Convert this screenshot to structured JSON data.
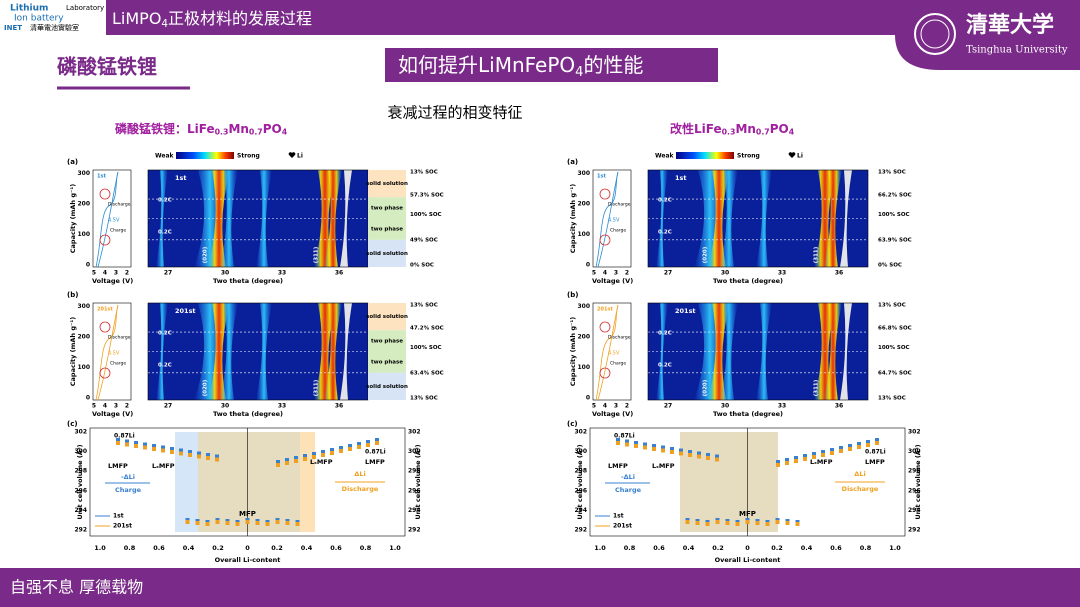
{
  "header": {
    "logo": {
      "line1": "Lithium",
      "line2": "Ion battery",
      "lab": "Laboratory",
      "mark": "INET",
      "cn": "清華電池實驗室"
    },
    "title": [
      "LiMPO",
      "4",
      "正极材料的发展过程"
    ],
    "university_cn": "清華大学",
    "university_en": "Tsinghua University"
  },
  "section_title": "磷酸锰铁锂",
  "headline": [
    "如何提升LiMnFePO",
    "4",
    "的性能"
  ],
  "subtitle": "衰减过程的相变特征",
  "figures": [
    {
      "title": [
        "磷酸锰铁锂：LiFe",
        "0.3",
        "Mn",
        "0.7",
        "PO",
        "4"
      ],
      "colorbar": {
        "weak": "Weak",
        "strong": "Strong",
        "li": "Li"
      },
      "axes": {
        "capacity": "Capacity (mAh g⁻¹)",
        "cap_ticks": [
          "0",
          "100",
          "200",
          "300"
        ],
        "voltage": "Voltage (V)",
        "volt_ticks": [
          "5",
          "4",
          "3",
          "2"
        ],
        "theta": "Two theta (degree)",
        "theta_ticks": [
          "27",
          "30",
          "33",
          "36"
        ],
        "peaks": [
          "(020)",
          "(311)"
        ],
        "rate": "0.2C",
        "discharge": "Discharge",
        "charge": "Charge",
        "cutoff": "4.5V"
      },
      "panels": [
        {
          "label": "(a)",
          "cycle": "1st",
          "soc": [
            "13% SOC",
            "57.3% SOC",
            "100% SOC",
            "49% SOC",
            "0% SOC"
          ],
          "phases": [
            "solid solution",
            "two phase",
            "two phase",
            "solid solution"
          ]
        },
        {
          "label": "(b)",
          "cycle": "201st",
          "soc": [
            "13% SOC",
            "47.2% SOC",
            "100% SOC",
            "63.4% SOC",
            "13% SOC"
          ],
          "phases": [
            "solid solution",
            "two phase",
            "two phase",
            "solid solution"
          ]
        }
      ],
      "volume": {
        "label": "(c)",
        "ylabel": "Unit cell volume (Å³)",
        "yticks": [
          "302",
          "300",
          "298",
          "296",
          "294",
          "292"
        ],
        "xticks": [
          "1.0",
          "0.8",
          "0.6",
          "0.4",
          "0.2",
          "0",
          "0.2",
          "0.4",
          "0.6",
          "0.8",
          "1.0"
        ],
        "xlabel": "Overall Li-content",
        "li_left": "0.87Li",
        "li_right": "0.87Li",
        "lmfp_left": "LMFP",
        "lxmfp_left": "LₓMFP",
        "lxmfp_right": "LₓMFP",
        "lmfp_right": "LMFP",
        "mfp": "MFP",
        "charge_delta": "-ΔLi",
        "charge": "Charge",
        "discharge_delta": "ΔLi",
        "discharge": "Discharge",
        "legend": [
          "1st",
          "201st"
        ]
      }
    },
    {
      "title": [
        "改性LiFe",
        "0.3",
        "Mn",
        "0.7",
        "PO",
        "4"
      ],
      "colorbar": {
        "weak": "Weak",
        "strong": "Strong",
        "li": "Li"
      },
      "axes": {
        "capacity": "Capacity (mAh g⁻¹)",
        "cap_ticks": [
          "0",
          "100",
          "200",
          "300"
        ],
        "voltage": "Voltage (V)",
        "volt_ticks": [
          "5",
          "4",
          "3",
          "2"
        ],
        "theta": "Two theta (degree)",
        "theta_ticks": [
          "27",
          "30",
          "33",
          "36"
        ],
        "peaks": [
          "(020)",
          "(311)"
        ],
        "rate": "0.2C",
        "discharge": "Discharge",
        "charge": "Charge",
        "cutoff": "4.5V"
      },
      "panels": [
        {
          "label": "(a)",
          "cycle": "1st",
          "soc": [
            "13% SOC",
            "66.2% SOC",
            "100% SOC",
            "63.9% SOC",
            "0% SOC"
          ],
          "phases": []
        },
        {
          "label": "(b)",
          "cycle": "201st",
          "soc": [
            "13% SOC",
            "66.8% SOC",
            "100% SOC",
            "64.7% SOC",
            "13% SOC"
          ],
          "phases": []
        }
      ],
      "volume": {
        "label": "(c)",
        "ylabel": "Unit cell volume (Å³)",
        "yticks": [
          "302",
          "300",
          "298",
          "296",
          "294",
          "292"
        ],
        "xticks": [
          "1.0",
          "0.8",
          "0.6",
          "0.4",
          "0.2",
          "0",
          "0.2",
          "0.4",
          "0.6",
          "0.8",
          "1.0"
        ],
        "xlabel": "Overall Li-content",
        "li_left": "0.87Li",
        "li_right": "0.87Li",
        "lmfp_left": "LMFP",
        "lxmfp_left": "LₓMFP",
        "lxmfp_right": "LₓMFP",
        "lmfp_right": "LMFP",
        "mfp": "MFP",
        "charge_delta": "-ΔLi",
        "charge": "Charge",
        "discharge_delta": "ΔLi",
        "discharge": "Discharge",
        "legend": [
          "1st",
          "201st"
        ]
      }
    }
  ],
  "footer": "自强不息 厚德载物"
}
